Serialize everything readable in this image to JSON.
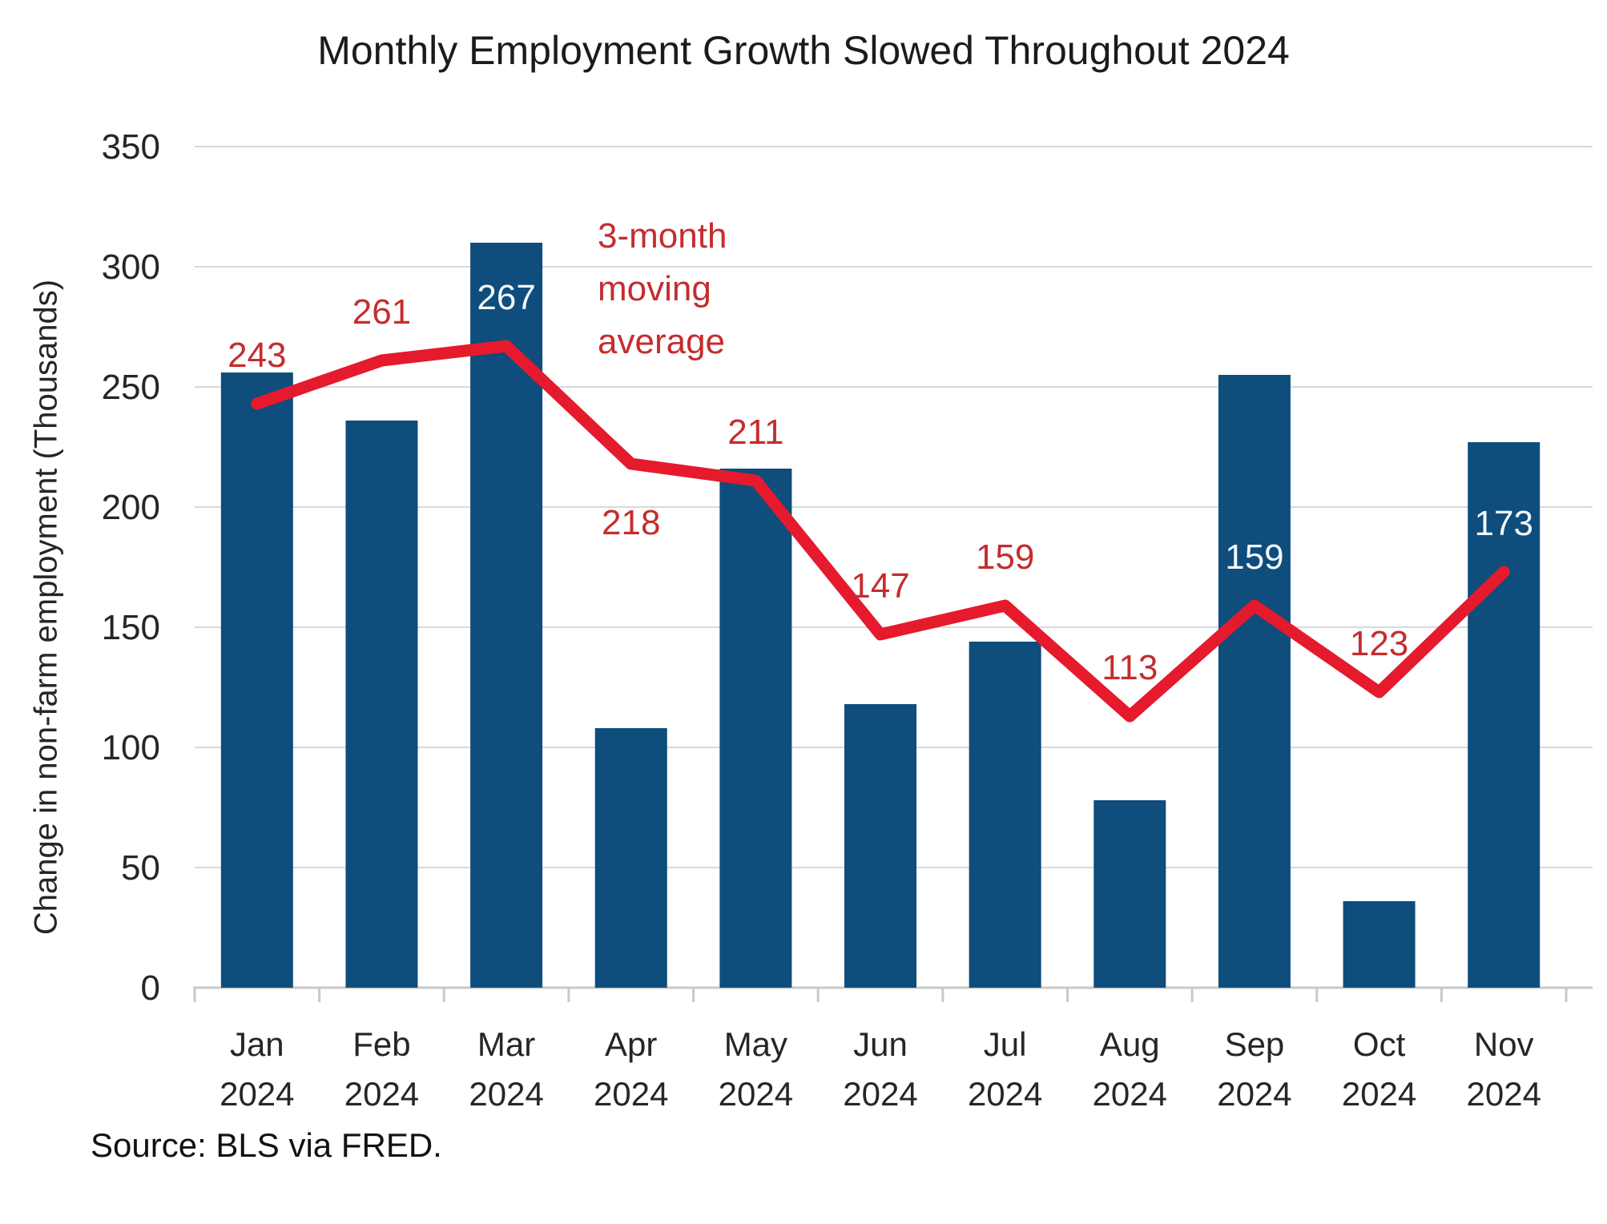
{
  "title": "Monthly Employment Growth Slowed Throughout 2024",
  "source": "Source: BLS via FRED.",
  "annotation": {
    "lines": [
      "3-month",
      "moving",
      "average"
    ]
  },
  "colors": {
    "bar": "#0E4D7C",
    "line": "#E51A2C",
    "red_label": "#C42D2E",
    "white_label": "#F4F9FD",
    "gridline": "#D9D9D9",
    "axis": "#C9C9C9",
    "tick_text": "#262626",
    "title_text": "#1B1B1B"
  },
  "chart_data": {
    "type": "bar",
    "title": "Monthly Employment Growth Slowed Throughout 2024",
    "xlabel": "",
    "ylabel": "Change in non-farm employment (Thousands)",
    "ylim": [
      0,
      350
    ],
    "ytick_step": 50,
    "grid": true,
    "legend": "none",
    "categories": [
      "Jan 2024",
      "Feb 2024",
      "Mar 2024",
      "Apr 2024",
      "May 2024",
      "Jun 2024",
      "Jul 2024",
      "Aug 2024",
      "Sep 2024",
      "Oct 2024",
      "Nov 2024"
    ],
    "category_lines": [
      [
        "Jan",
        "2024"
      ],
      [
        "Feb",
        "2024"
      ],
      [
        "Mar",
        "2024"
      ],
      [
        "Apr",
        "2024"
      ],
      [
        "May",
        "2024"
      ],
      [
        "Jun",
        "2024"
      ],
      [
        "Jul",
        "2024"
      ],
      [
        "Aug",
        "2024"
      ],
      [
        "Sep",
        "2024"
      ],
      [
        "Oct",
        "2024"
      ],
      [
        "Nov",
        "2024"
      ]
    ],
    "series": [
      {
        "name": "Change in non-farm employment",
        "type": "bar",
        "values": [
          256,
          236,
          310,
          108,
          216,
          118,
          144,
          78,
          255,
          36,
          227
        ]
      },
      {
        "name": "3-month moving average",
        "type": "line",
        "values": [
          243,
          261,
          267,
          218,
          211,
          147,
          159,
          113,
          159,
          123,
          173
        ],
        "label_texts": [
          "243",
          "261",
          "267",
          "218",
          "211",
          "147",
          "159",
          "113",
          "159",
          "123",
          "173"
        ],
        "label_styles": [
          "red",
          "red",
          "white",
          "red",
          "red",
          "red",
          "red",
          "red",
          "white",
          "red",
          "white"
        ],
        "label_sides": [
          "above",
          "above",
          "above",
          "below",
          "above",
          "above",
          "above",
          "above",
          "above",
          "above",
          "above"
        ]
      }
    ]
  }
}
